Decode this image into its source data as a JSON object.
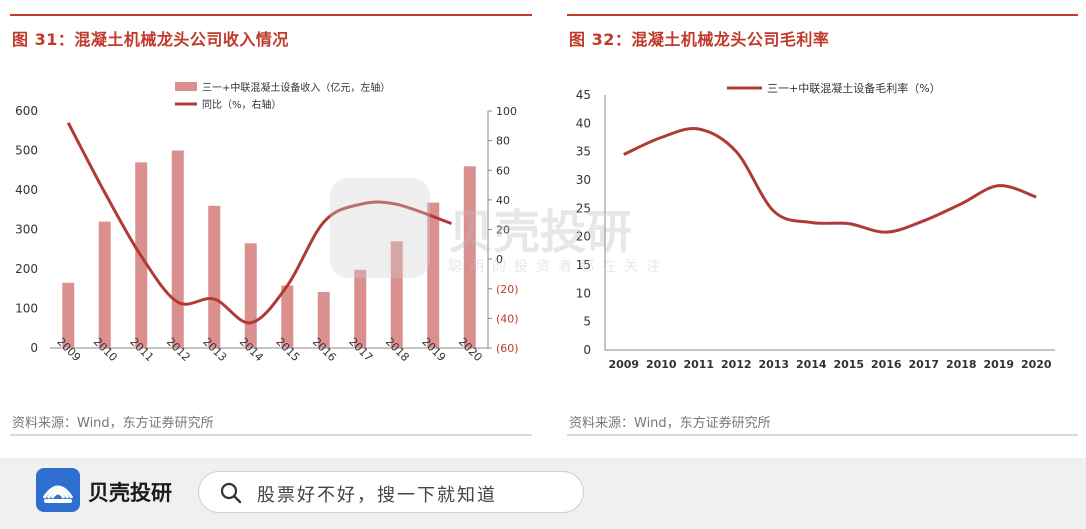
{
  "left": {
    "title": "图 31：混凝土机械龙头公司收入情况",
    "source": "资料来源：Wind，东方证券研究所"
  },
  "right": {
    "title": "图 32：混凝土机械龙头公司毛利率",
    "source": "资料来源：Wind，东方证券研究所"
  },
  "watermark": {
    "title": "贝壳投研",
    "subtitle": "聪明的投资者都在关注"
  },
  "footer": {
    "brand": "贝壳投研",
    "search_placeholder": "股票好不好，搜一下就知道"
  },
  "colors": {
    "accent": "#c0392b",
    "bar": "#d9908f",
    "line": "#b03a35",
    "brand_blue": "#2f6fd0"
  },
  "chart_data": [
    {
      "type": "bar",
      "categories": [
        "2009",
        "2010",
        "2011",
        "2012",
        "2013",
        "2014",
        "2015",
        "2016",
        "2017",
        "2018",
        "2019",
        "2020"
      ],
      "series": [
        {
          "name": "三一+中联混凝土设备收入（亿元，左轴）",
          "type": "bar",
          "axis": "left",
          "values": [
            165,
            320,
            470,
            500,
            360,
            265,
            158,
            142,
            198,
            270,
            368,
            460
          ]
        },
        {
          "name": "同比（%，右轴）",
          "type": "line",
          "axis": "right",
          "values": [
            92,
            45,
            2,
            -29,
            -27,
            -43,
            -18,
            25,
            37,
            37,
            24,
            null
          ]
        }
      ],
      "yticks_left": [
        "0",
        "100",
        "200",
        "300",
        "400",
        "500",
        "600"
      ],
      "yticks_right": [
        "(60)",
        "(40)",
        "(20)",
        "0",
        "20",
        "40",
        "60",
        "80",
        "100"
      ],
      "ylim_left": [
        0,
        600
      ],
      "ylim_right": [
        -60,
        100
      ],
      "grid": false,
      "legend": "top-center"
    },
    {
      "type": "line",
      "categories": [
        "2009",
        "2010",
        "2011",
        "2012",
        "2013",
        "2014",
        "2015",
        "2016",
        "2017",
        "2018",
        "2019",
        "2020"
      ],
      "series": [
        {
          "name": "三一+中联混凝土设备毛利率（%）",
          "values": [
            34.5,
            37.5,
            39,
            35,
            24.5,
            22.5,
            22.3,
            20.8,
            22.8,
            25.8,
            29,
            27
          ]
        }
      ],
      "yticks": [
        "0",
        "5",
        "10",
        "15",
        "20",
        "25",
        "30",
        "35",
        "40",
        "45"
      ],
      "ylim": [
        0,
        45
      ],
      "grid": false,
      "legend": "top-center"
    }
  ]
}
